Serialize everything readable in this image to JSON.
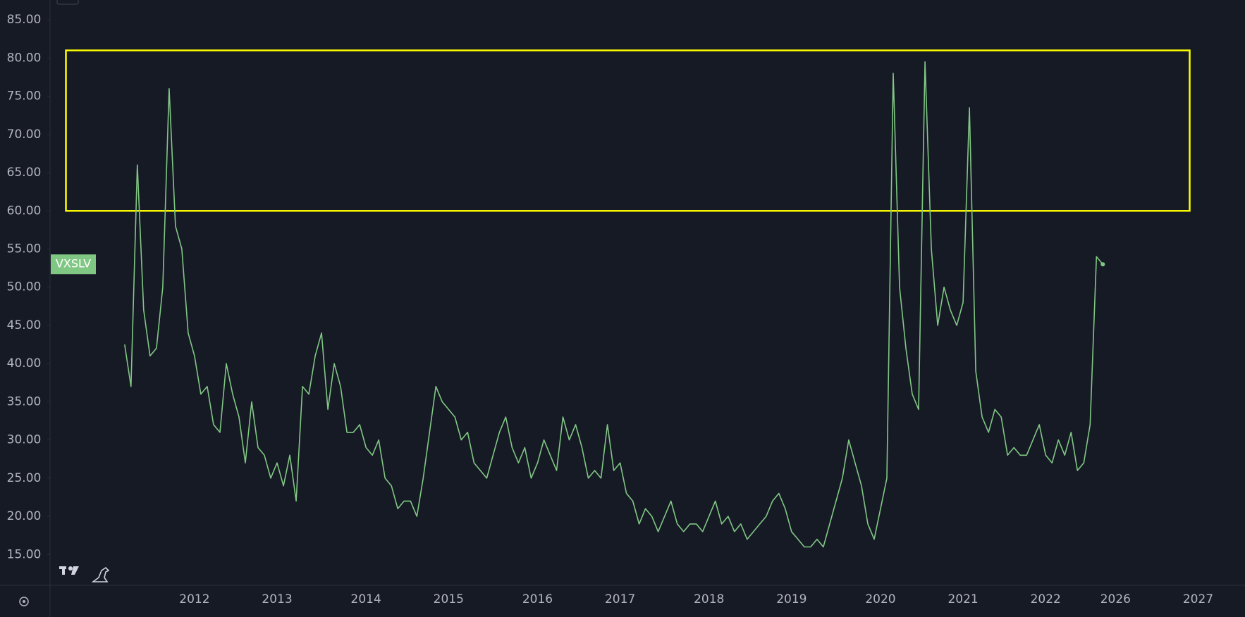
{
  "chart_data": {
    "type": "line",
    "categories": [
      null,
      null,
      null,
      null,
      null,
      null,
      null,
      null,
      null,
      null,
      null,
      "2012",
      null,
      null,
      null,
      null,
      null,
      null,
      null,
      null,
      null,
      null,
      null,
      null,
      "2013",
      null,
      null,
      null,
      null,
      null,
      null,
      null,
      null,
      null,
      null,
      null,
      null,
      null,
      "2014",
      null,
      null,
      null,
      null,
      null,
      null,
      null,
      null,
      null,
      null,
      null,
      null,
      "2015",
      null,
      null,
      null,
      null,
      null,
      null,
      null,
      null,
      null,
      null,
      null,
      null,
      null,
      "2016",
      null,
      null,
      null,
      null,
      null,
      null,
      null,
      null,
      null,
      null,
      null,
      null,
      "2017",
      null,
      null,
      null,
      null,
      null,
      null,
      null,
      null,
      null,
      null,
      null,
      null,
      null,
      "2018",
      null,
      null,
      null,
      null,
      null,
      null,
      null,
      null,
      null,
      null,
      null,
      null,
      "2019",
      null,
      null,
      null,
      null,
      null,
      null,
      null,
      null,
      null,
      null,
      null,
      null,
      null,
      "2020",
      null,
      null,
      null,
      null,
      null,
      null,
      null,
      null,
      null,
      null,
      null,
      null,
      "2021",
      null,
      null,
      null,
      null,
      null,
      null,
      null,
      null,
      null,
      null,
      null,
      null,
      "2022",
      null,
      null,
      null,
      null,
      null,
      null,
      null,
      null,
      null,
      null,
      "2026",
      null,
      null,
      null,
      null,
      null,
      null,
      null,
      null,
      null,
      null,
      null,
      null,
      "2027"
    ],
    "series": [
      {
        "name": "VXSLV",
        "color": "#81c784",
        "values": [
          42.5,
          37,
          66,
          47,
          41,
          42,
          50,
          76,
          58,
          55,
          44,
          41,
          36,
          37,
          32,
          31,
          40,
          36,
          33,
          27,
          35,
          29,
          28,
          25,
          27,
          24,
          28,
          22,
          37,
          36,
          41,
          44,
          34,
          40,
          37,
          31,
          31,
          32,
          29,
          28,
          30,
          25,
          24,
          21,
          22,
          22,
          20,
          25,
          31,
          37,
          35,
          34,
          33,
          30,
          31,
          27,
          26,
          25,
          28,
          31,
          33,
          29,
          27,
          29,
          25,
          27,
          30,
          28,
          26,
          33,
          30,
          32,
          29,
          25,
          26,
          25,
          32,
          26,
          27,
          23,
          22,
          19,
          21,
          20,
          18,
          20,
          22,
          19,
          18,
          19,
          19,
          18,
          20,
          22,
          19,
          20,
          18,
          19,
          17,
          18,
          19,
          20,
          22,
          23,
          21,
          18,
          17,
          16,
          16,
          17,
          16,
          19,
          22,
          25,
          30,
          27,
          24,
          19,
          17,
          21,
          25,
          78,
          50,
          42,
          36,
          34,
          79.5,
          55,
          45,
          50,
          47,
          45,
          48,
          73.5,
          39,
          33,
          31,
          34,
          33,
          28,
          29,
          28,
          28,
          30,
          32,
          28,
          27,
          30,
          28,
          31,
          26,
          27,
          32,
          54,
          53,
          null,
          null,
          null,
          null,
          null,
          null,
          null,
          null,
          null,
          null,
          null,
          null,
          null,
          null,
          null
        ]
      }
    ],
    "ylim": [
      10.97,
      87.6
    ],
    "yticks": [
      {
        "value": 15,
        "label": "15.00"
      },
      {
        "value": 20,
        "label": "20.00"
      },
      {
        "value": 25,
        "label": "25.00"
      },
      {
        "value": 30,
        "label": "30.00"
      },
      {
        "value": 35,
        "label": "35.00"
      },
      {
        "value": 40,
        "label": "40.00"
      },
      {
        "value": 45,
        "label": "45.00"
      },
      {
        "value": 50,
        "label": "50.00"
      },
      {
        "value": 55,
        "label": "55.00"
      },
      {
        "value": 60,
        "label": "60.00"
      },
      {
        "value": 65,
        "label": "65.00"
      },
      {
        "value": 70,
        "label": "70.00"
      },
      {
        "value": 75,
        "label": "75.00"
      },
      {
        "value": 80,
        "label": "80.00"
      },
      {
        "value": 85,
        "label": "85.00"
      }
    ],
    "highlight_box": {
      "y_range": [
        60,
        81
      ],
      "color": "#ffff00"
    }
  }
}
